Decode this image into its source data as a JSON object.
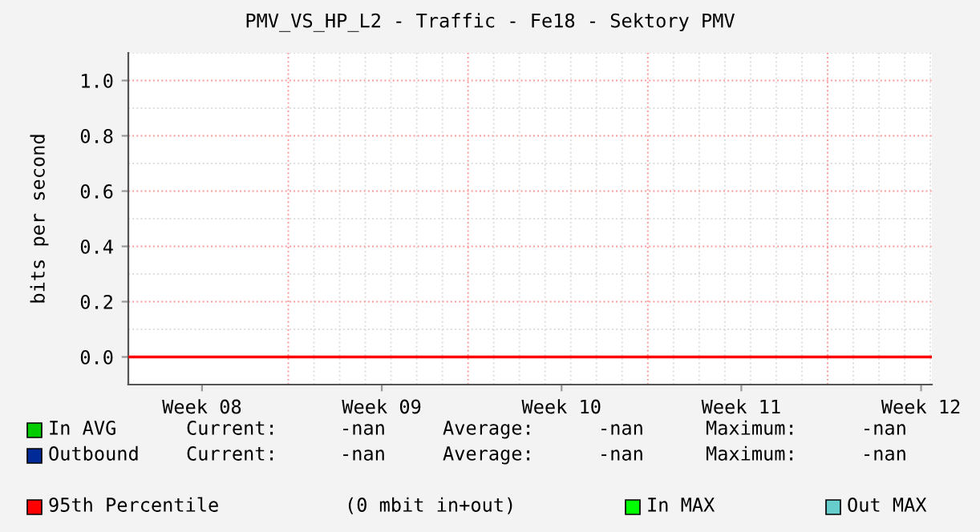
{
  "chart_data": {
    "type": "line",
    "title": "PMV_VS_HP_L2 - Traffic - Fe18 - Sektory PMV",
    "ylabel": "bits per second",
    "categories": [
      "Week 08",
      "Week 09",
      "Week 10",
      "Week 11",
      "Week 12"
    ],
    "series": [
      {
        "name": "In AVG",
        "color": "#00cc00",
        "values": [
          null,
          null,
          null,
          null,
          null
        ]
      },
      {
        "name": "Outbound",
        "color": "#002a97",
        "values": [
          null,
          null,
          null,
          null,
          null
        ]
      },
      {
        "name": "In MAX",
        "color": "#00ff00",
        "values": [
          null,
          null,
          null,
          null,
          null
        ]
      },
      {
        "name": "Out MAX",
        "color": "#66cccc",
        "values": [
          null,
          null,
          null,
          null,
          null
        ]
      }
    ],
    "ylim": [
      -0.1,
      1.1
    ],
    "yticks": [
      {
        "value": 0,
        "label": "0.0"
      },
      {
        "value": 0.2,
        "label": "0.2"
      },
      {
        "value": 0.4,
        "label": "0.4"
      },
      {
        "value": 0.6,
        "label": "0.6"
      },
      {
        "value": 0.8,
        "label": "0.8"
      },
      {
        "value": 1.0,
        "label": "1.0"
      }
    ],
    "grid": true,
    "ref_lines": [
      {
        "axis": "y",
        "value": 0,
        "label": "95th Percentile",
        "color": "#ff0000",
        "line_style": "solid"
      }
    ],
    "legend": "bottom",
    "annotations": [
      "Current:",
      "-nan",
      "Average:",
      "-nan",
      "Maximum:",
      "-nan",
      "Current:",
      "-nan",
      "Average:",
      "-nan",
      "Maximum:",
      "-nan",
      "(0 mbit in+out)"
    ]
  }
}
